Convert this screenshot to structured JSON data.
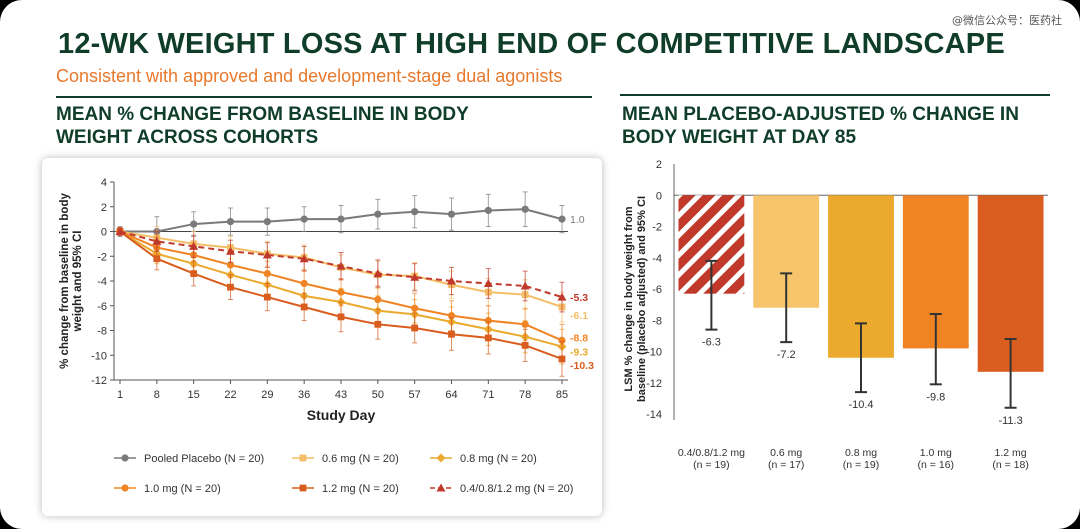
{
  "watermark": "@微信公众号：医药社",
  "header": {
    "title": "12-WK WEIGHT LOSS AT HIGH END OF COMPETITIVE LANDSCAPE",
    "subtitle": "Consistent with approved and development-stage dual agonists"
  },
  "chart_data": [
    {
      "type": "line",
      "panel_title": "MEAN % CHANGE FROM BASELINE IN BODY WEIGHT ACROSS COHORTS",
      "xlabel": "Study Day",
      "ylabel": "% change from baseline in body weight and 95% CI",
      "x": [
        1,
        8,
        15,
        22,
        29,
        36,
        43,
        50,
        57,
        64,
        71,
        78,
        85
      ],
      "ylim": [
        -12,
        4
      ],
      "yticks": [
        4,
        2,
        0,
        -2,
        -4,
        -6,
        -8,
        -10,
        -12
      ],
      "grid": false,
      "legend_position": "bottom",
      "series": [
        {
          "name": "Pooled Placebo (N = 20)",
          "color": "#7a7a7a",
          "marker": "circle",
          "dashed": false,
          "end_label": "1.0",
          "values": [
            0,
            0,
            0.6,
            0.8,
            0.8,
            1.0,
            1.0,
            1.4,
            1.6,
            1.4,
            1.7,
            1.8,
            1.0
          ],
          "ci": [
            0.4,
            1.2,
            1.0,
            1.1,
            1.1,
            1.0,
            1.1,
            1.2,
            1.3,
            1.3,
            1.3,
            1.4,
            1.1
          ]
        },
        {
          "name": "0.6 mg (N = 20)",
          "color": "#f4be66",
          "marker": "square",
          "dashed": false,
          "end_label": "-6.1",
          "values": [
            0,
            -0.5,
            -1.0,
            -1.3,
            -1.8,
            -2.1,
            -2.9,
            -3.5,
            -3.6,
            -4.3,
            -4.9,
            -5.1,
            -6.1
          ],
          "ci": [
            0.3,
            0.9,
            1.0,
            0.9,
            1.0,
            1.0,
            1.0,
            1.1,
            1.1,
            1.1,
            1.1,
            1.2,
            1.2
          ]
        },
        {
          "name": "0.8 mg (N = 20)",
          "color": "#eba92e",
          "marker": "diamond",
          "dashed": false,
          "end_label": "-9.3",
          "values": [
            0,
            -1.8,
            -2.6,
            -3.5,
            -4.3,
            -5.2,
            -5.7,
            -6.4,
            -6.7,
            -7.3,
            -7.9,
            -8.5,
            -9.3
          ],
          "ci": [
            0.3,
            0.8,
            0.9,
            1.0,
            1.0,
            1.1,
            1.1,
            1.2,
            1.2,
            1.2,
            1.3,
            1.3,
            1.4
          ]
        },
        {
          "name": "1.0 mg (N = 20)",
          "color": "#f08424",
          "marker": "circle",
          "dashed": false,
          "end_label": "-8.8",
          "values": [
            0,
            -1.3,
            -1.9,
            -2.7,
            -3.4,
            -4.2,
            -4.9,
            -5.5,
            -6.2,
            -6.8,
            -7.2,
            -7.5,
            -8.8
          ],
          "ci": [
            0.3,
            0.8,
            0.9,
            1.0,
            1.0,
            1.1,
            1.1,
            1.1,
            1.2,
            1.2,
            1.2,
            1.3,
            1.3
          ]
        },
        {
          "name": "1.2 mg (N = 20)",
          "color": "#d95d1e",
          "marker": "square",
          "dashed": false,
          "end_label": "-10.3",
          "values": [
            0,
            -2.2,
            -3.4,
            -4.5,
            -5.3,
            -6.1,
            -6.9,
            -7.5,
            -7.8,
            -8.3,
            -8.6,
            -9.2,
            -10.3
          ],
          "ci": [
            0.3,
            0.9,
            1.0,
            1.0,
            1.1,
            1.1,
            1.2,
            1.2,
            1.2,
            1.3,
            1.3,
            1.3,
            1.4
          ]
        },
        {
          "name": "0.4/0.8/1.2 mg (N = 20)",
          "color": "#c0392b",
          "marker": "triangle",
          "dashed": true,
          "end_label": "-5.3",
          "values": [
            0,
            -0.8,
            -1.2,
            -1.6,
            -1.9,
            -2.2,
            -2.8,
            -3.4,
            -3.7,
            -4.0,
            -4.2,
            -4.4,
            -5.3
          ],
          "ci": [
            0.3,
            0.8,
            0.9,
            0.9,
            1.0,
            1.0,
            1.1,
            1.1,
            1.1,
            1.1,
            1.2,
            1.2,
            1.2
          ]
        }
      ]
    },
    {
      "type": "bar",
      "panel_title": "MEAN PLACEBO-ADJUSTED % CHANGE IN BODY WEIGHT AT DAY 85",
      "ylabel": "LSM % change in body weight from baseline (placebo adjusted) and 95% CI",
      "ylim": [
        -14,
        2
      ],
      "yticks": [
        2,
        0,
        -2,
        -4,
        -6,
        -8,
        -10,
        -12,
        -14
      ],
      "grid": false,
      "bars": [
        {
          "category": "0.4/0.8/1.2 mg",
          "n_label": "(n = 19)",
          "value": -6.3,
          "ci": [
            -8.6,
            -4.2
          ],
          "color": "#c0392b",
          "hatched": true
        },
        {
          "category": "0.6 mg",
          "n_label": "(n = 17)",
          "value": -7.2,
          "ci": [
            -9.4,
            -5.0
          ],
          "color": "#f6c46a",
          "hatched": false
        },
        {
          "category": "0.8 mg",
          "n_label": "(n = 19)",
          "value": -10.4,
          "ci": [
            -12.6,
            -8.2
          ],
          "color": "#eba92e",
          "hatched": false
        },
        {
          "category": "1.0 mg",
          "n_label": "(n = 16)",
          "value": -9.8,
          "ci": [
            -12.1,
            -7.6
          ],
          "color": "#f08424",
          "hatched": false
        },
        {
          "category": "1.2 mg",
          "n_label": "(n = 18)",
          "value": -11.3,
          "ci": [
            -13.6,
            -9.2
          ],
          "color": "#d95d1e",
          "hatched": false
        }
      ],
      "value_labels": [
        "-6.3",
        "-7.2",
        "-10.4",
        "-9.8",
        "-11.3"
      ]
    }
  ]
}
